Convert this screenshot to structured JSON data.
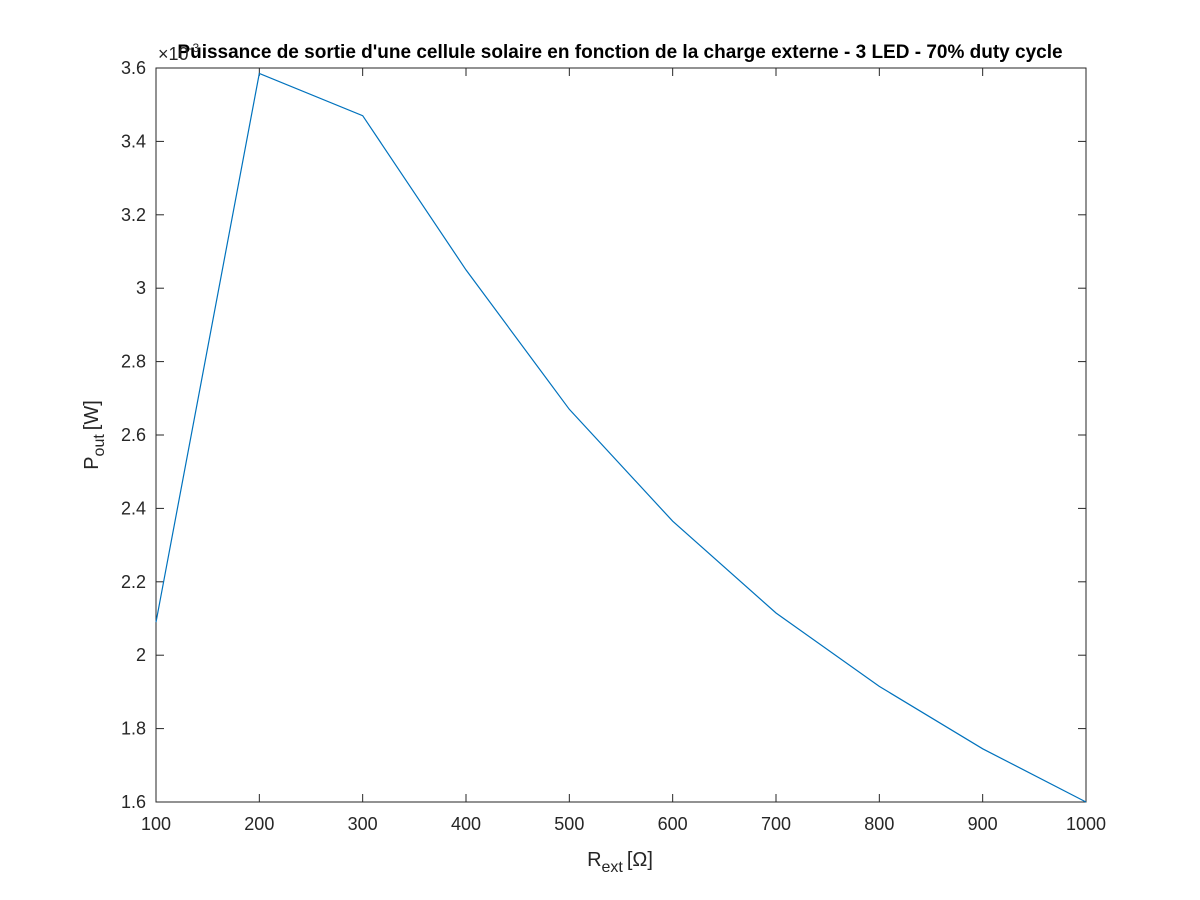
{
  "chart_data": {
    "type": "line",
    "title": "Puissance de sortie d'une cellule solaire en fonction de la charge externe - 3 LED - 70% duty cycle",
    "xlabel": {
      "main": "R",
      "sub": "ext",
      "unit": "[Ω]"
    },
    "ylabel": {
      "main": "P",
      "sub": "out",
      "unit": "[W]"
    },
    "y_exponent": {
      "base": "×10",
      "power": "-3"
    },
    "xlim": [
      100,
      1000
    ],
    "ylim": [
      1.6,
      3.6
    ],
    "xticks": [
      100,
      200,
      300,
      400,
      500,
      600,
      700,
      800,
      900,
      1000
    ],
    "yticks": [
      1.6,
      1.8,
      2,
      2.2,
      2.4,
      2.6,
      2.8,
      3,
      3.2,
      3.4,
      3.6
    ],
    "xtick_labels": [
      "100",
      "200",
      "300",
      "400",
      "500",
      "600",
      "700",
      "800",
      "900",
      "1000"
    ],
    "ytick_labels": [
      "1.6",
      "1.8",
      "2",
      "2.2",
      "2.4",
      "2.6",
      "2.8",
      "3",
      "3.2",
      "3.4",
      "3.6"
    ],
    "grid": false,
    "series": [
      {
        "x": [
          100,
          200,
          300,
          400,
          500,
          600,
          700,
          800,
          900,
          1000
        ],
        "y": [
          2.09,
          3.585,
          3.47,
          3.05,
          2.67,
          2.365,
          2.115,
          1.915,
          1.745,
          1.6
        ],
        "color": "#0072BD"
      }
    ]
  }
}
